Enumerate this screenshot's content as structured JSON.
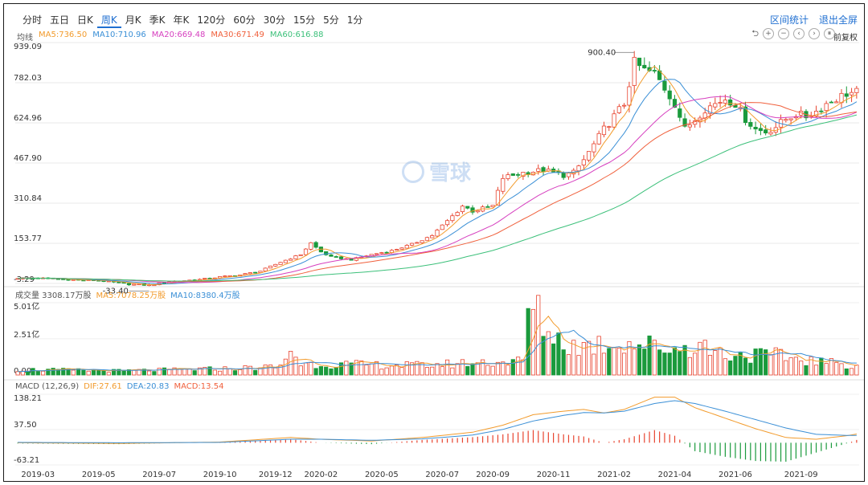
{
  "tabs": [
    "分时",
    "五日",
    "日K",
    "周K",
    "月K",
    "季K",
    "年K",
    "120分",
    "60分",
    "30分",
    "15分",
    "5分",
    "1分"
  ],
  "active_tab": "周K",
  "top_right": {
    "stats": "区间统计",
    "exit_full": "退出全屏"
  },
  "ma_legend": {
    "label": "均线",
    "items": [
      {
        "text": "MA5:736.50",
        "color": "#f29b2c"
      },
      {
        "text": "MA10:710.96",
        "color": "#3a8fd6"
      },
      {
        "text": "MA20:669.48",
        "color": "#d63fbf"
      },
      {
        "text": "MA30:671.49",
        "color": "#f0603c"
      },
      {
        "text": "MA60:616.88",
        "color": "#3cc07a"
      }
    ]
  },
  "tools": [
    "⮌",
    "+",
    "−",
    "‹",
    "›",
    "⏸"
  ],
  "fuquan": "前复权",
  "vol_legend": {
    "label": "成交量 3308.17万股",
    "items": [
      {
        "text": "MA5:7078.25万股",
        "color": "#f29b2c"
      },
      {
        "text": "MA10:8380.4万股",
        "color": "#3a8fd6"
      }
    ]
  },
  "macd_legend": {
    "label": "MACD (12,26,9)",
    "items": [
      {
        "text": "DIF:27.61",
        "color": "#f29b2c"
      },
      {
        "text": "DEA:20.83",
        "color": "#3a8fd6"
      },
      {
        "text": "MACD:13.54",
        "color": "#f0603c"
      }
    ]
  },
  "watermark": "雪球",
  "chart_data": [
    {
      "type": "candlestick",
      "yticks": [
        "939.09",
        "782.03",
        "624.96",
        "467.90",
        "310.84",
        "153.77",
        "-3.29"
      ],
      "ylim": [
        -3.29,
        939.09
      ],
      "annotations": [
        {
          "text": "900.40",
          "value": 900.4
        },
        {
          "text": "-33.40",
          "value": -33.4
        }
      ],
      "x_dates": [
        "2019-03",
        "2019-05",
        "2019-07",
        "2019-10",
        "2019-12",
        "2020-02",
        "2020-05",
        "2020-07",
        "2020-09",
        "2020-11",
        "2021-02",
        "2021-04",
        "2021-06",
        "2021-09"
      ],
      "close_anchors": [
        [
          0,
          18
        ],
        [
          6,
          16
        ],
        [
          12,
          10
        ],
        [
          16,
          8
        ],
        [
          22,
          -6
        ],
        [
          26,
          -10
        ],
        [
          30,
          4
        ],
        [
          36,
          12
        ],
        [
          40,
          22
        ],
        [
          44,
          30
        ],
        [
          48,
          45
        ],
        [
          52,
          80
        ],
        [
          56,
          110
        ],
        [
          58,
          155
        ],
        [
          60,
          120
        ],
        [
          62,
          100
        ],
        [
          66,
          90
        ],
        [
          70,
          110
        ],
        [
          74,
          125
        ],
        [
          78,
          150
        ],
        [
          82,
          185
        ],
        [
          86,
          260
        ],
        [
          88,
          300
        ],
        [
          90,
          280
        ],
        [
          94,
          300
        ],
        [
          96,
          410
        ],
        [
          100,
          430
        ],
        [
          104,
          440
        ],
        [
          108,
          420
        ],
        [
          110,
          430
        ],
        [
          112,
          480
        ],
        [
          116,
          600
        ],
        [
          120,
          700
        ],
        [
          122,
          860
        ],
        [
          124,
          830
        ],
        [
          126,
          820
        ],
        [
          128,
          760
        ],
        [
          130,
          700
        ],
        [
          132,
          600
        ],
        [
          134,
          640
        ],
        [
          136,
          680
        ],
        [
          138,
          700
        ],
        [
          140,
          720
        ],
        [
          142,
          700
        ],
        [
          144,
          640
        ],
        [
          146,
          600
        ],
        [
          148,
          590
        ],
        [
          150,
          610
        ],
        [
          152,
          640
        ],
        [
          154,
          660
        ],
        [
          156,
          650
        ],
        [
          158,
          670
        ],
        [
          160,
          700
        ],
        [
          164,
          740
        ],
        [
          166,
          745
        ]
      ],
      "ma": [
        {
          "name": "MA5",
          "color": "#f29b2c",
          "period": 5
        },
        {
          "name": "MA10",
          "color": "#3a8fd6",
          "period": 10
        },
        {
          "name": "MA20",
          "color": "#d63fbf",
          "period": 20
        },
        {
          "name": "MA30",
          "color": "#f0603c",
          "period": 30
        },
        {
          "name": "MA60",
          "color": "#3cc07a",
          "period": 60
        }
      ]
    },
    {
      "type": "bar",
      "name": "volume",
      "yticks": [
        "5.01亿",
        "2.51亿",
        "0.00"
      ],
      "ylim": [
        0,
        5.01
      ],
      "vol_anchors": [
        [
          0,
          0.4
        ],
        [
          20,
          0.3
        ],
        [
          40,
          0.45
        ],
        [
          52,
          0.6
        ],
        [
          54,
          1.9
        ],
        [
          56,
          0.8
        ],
        [
          80,
          0.7
        ],
        [
          90,
          0.9
        ],
        [
          100,
          1.0
        ],
        [
          101,
          4.9
        ],
        [
          103,
          4.3
        ],
        [
          106,
          2.8
        ],
        [
          110,
          2.1
        ],
        [
          120,
          2.4
        ],
        [
          130,
          1.9
        ],
        [
          135,
          2.2
        ],
        [
          140,
          1.5
        ],
        [
          150,
          1.4
        ],
        [
          160,
          0.9
        ],
        [
          166,
          0.7
        ]
      ]
    },
    {
      "type": "line",
      "name": "MACD",
      "yticks": [
        "138.21",
        "37.50",
        "-63.21"
      ],
      "ylim": [
        -63.21,
        138.21
      ],
      "dif_anchors": [
        [
          0,
          0
        ],
        [
          20,
          -2
        ],
        [
          40,
          2
        ],
        [
          54,
          15
        ],
        [
          60,
          10
        ],
        [
          70,
          5
        ],
        [
          80,
          15
        ],
        [
          90,
          30
        ],
        [
          96,
          50
        ],
        [
          102,
          80
        ],
        [
          108,
          90
        ],
        [
          112,
          95
        ],
        [
          116,
          85
        ],
        [
          120,
          95
        ],
        [
          126,
          130
        ],
        [
          130,
          130
        ],
        [
          134,
          100
        ],
        [
          140,
          70
        ],
        [
          146,
          40
        ],
        [
          152,
          15
        ],
        [
          158,
          10
        ],
        [
          164,
          20
        ],
        [
          166,
          25
        ]
      ],
      "dea_anchors": [
        [
          0,
          1
        ],
        [
          20,
          0
        ],
        [
          40,
          1
        ],
        [
          54,
          10
        ],
        [
          60,
          10
        ],
        [
          70,
          7
        ],
        [
          80,
          11
        ],
        [
          90,
          22
        ],
        [
          96,
          38
        ],
        [
          102,
          62
        ],
        [
          108,
          78
        ],
        [
          112,
          86
        ],
        [
          116,
          85
        ],
        [
          120,
          90
        ],
        [
          126,
          112
        ],
        [
          130,
          120
        ],
        [
          134,
          112
        ],
        [
          140,
          90
        ],
        [
          146,
          66
        ],
        [
          152,
          42
        ],
        [
          158,
          24
        ],
        [
          164,
          21
        ],
        [
          166,
          21
        ]
      ]
    }
  ]
}
